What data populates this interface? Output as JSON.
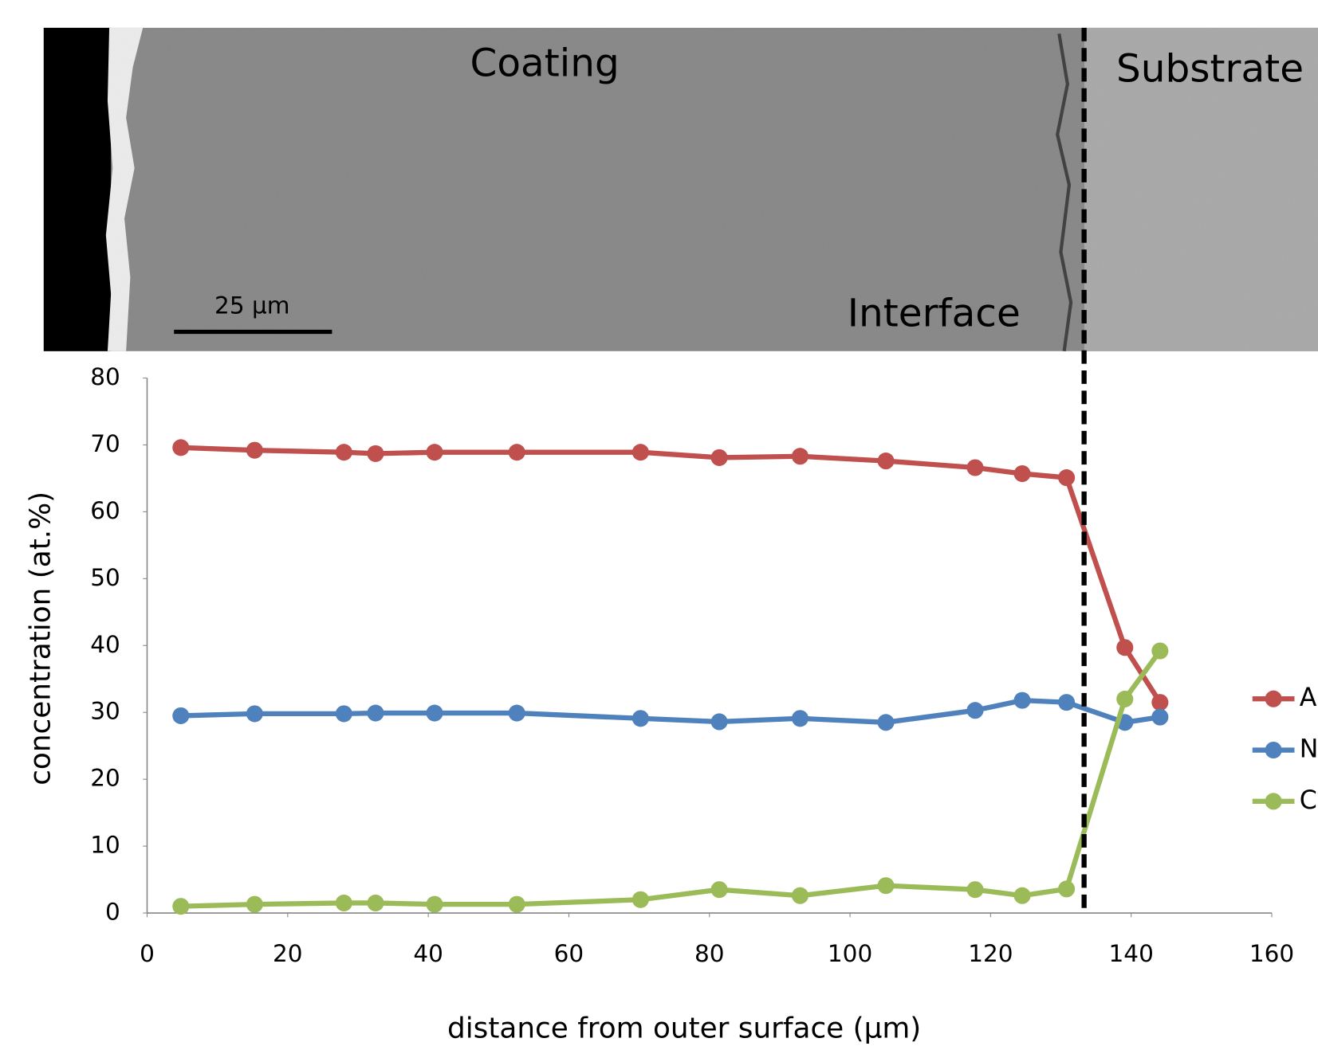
{
  "chart_data": {
    "type": "line",
    "x_label": "distance from outer surface (µm)",
    "y_label": "concentration (at.%)",
    "x": [
      4.8,
      15.3,
      28.0,
      32.5,
      40.9,
      52.6,
      70.2,
      81.4,
      92.9,
      105.1,
      117.8,
      124.5,
      130.8,
      139.1,
      144.1
    ],
    "series": [
      {
        "name": "A",
        "color": "#c0504d",
        "values": [
          69.6,
          69.2,
          68.9,
          68.7,
          68.9,
          68.9,
          68.9,
          68.1,
          68.3,
          67.6,
          66.6,
          65.7,
          65.1,
          39.7,
          31.5
        ]
      },
      {
        "name": "N",
        "color": "#4f81bd",
        "values": [
          29.5,
          29.8,
          29.8,
          29.9,
          29.9,
          29.9,
          29.1,
          28.6,
          29.1,
          28.5,
          30.3,
          31.8,
          31.5,
          28.5,
          29.3
        ]
      },
      {
        "name": "C",
        "color": "#9bbb59",
        "values": [
          1.0,
          1.3,
          1.5,
          1.5,
          1.3,
          1.3,
          2.0,
          3.5,
          2.6,
          4.1,
          3.5,
          2.6,
          3.6,
          32.0,
          39.2
        ]
      }
    ],
    "xlim": [
      0,
      160
    ],
    "xticks": [
      0,
      20,
      40,
      60,
      80,
      100,
      120,
      140,
      160
    ],
    "ylim": [
      0,
      80
    ],
    "yticks": [
      0,
      10,
      20,
      30,
      40,
      50,
      60,
      70,
      80
    ],
    "grid": false,
    "interface_x": 133.3,
    "image_labels": {
      "coating": "Coating",
      "substrate": "Substrate",
      "interface": "Interface",
      "scale_bar": "25 µm"
    }
  }
}
